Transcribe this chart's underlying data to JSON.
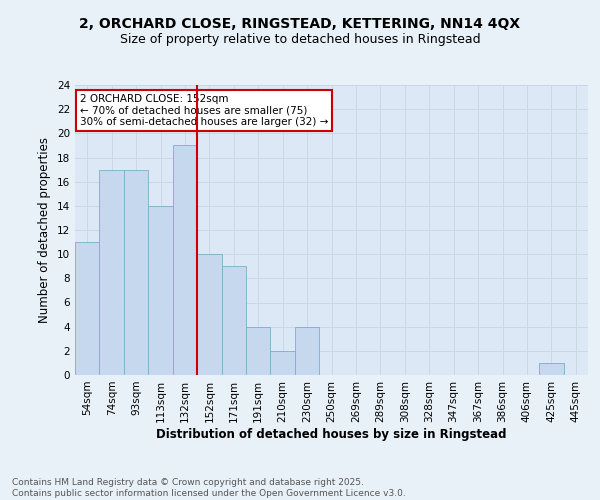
{
  "title_line1": "2, ORCHARD CLOSE, RINGSTEAD, KETTERING, NN14 4QX",
  "title_line2": "Size of property relative to detached houses in Ringstead",
  "xlabel": "Distribution of detached houses by size in Ringstead",
  "ylabel": "Number of detached properties",
  "categories": [
    "54sqm",
    "74sqm",
    "93sqm",
    "113sqm",
    "132sqm",
    "152sqm",
    "171sqm",
    "191sqm",
    "210sqm",
    "230sqm",
    "250sqm",
    "269sqm",
    "289sqm",
    "308sqm",
    "328sqm",
    "347sqm",
    "367sqm",
    "386sqm",
    "406sqm",
    "425sqm",
    "445sqm"
  ],
  "values": [
    11,
    17,
    17,
    14,
    19,
    10,
    9,
    4,
    2,
    4,
    0,
    0,
    0,
    0,
    0,
    0,
    0,
    0,
    0,
    1,
    0
  ],
  "bar_color": "#c5d8ee",
  "bar_edgecolor": "#7aaecc",
  "redline_index": 4,
  "ylim": [
    0,
    24
  ],
  "yticks": [
    0,
    2,
    4,
    6,
    8,
    10,
    12,
    14,
    16,
    18,
    20,
    22,
    24
  ],
  "annotation_text": "2 ORCHARD CLOSE: 152sqm\n← 70% of detached houses are smaller (75)\n30% of semi-detached houses are larger (32) →",
  "annotation_box_color": "#ffffff",
  "annotation_box_edgecolor": "#cc0000",
  "footer_line1": "Contains HM Land Registry data © Crown copyright and database right 2025.",
  "footer_line2": "Contains public sector information licensed under the Open Government Licence v3.0.",
  "background_color": "#e8f0f8",
  "plot_bg_color": "#dce8f5",
  "grid_color": "#c8d8e8",
  "title_fontsize": 10,
  "subtitle_fontsize": 9,
  "axis_label_fontsize": 8.5,
  "tick_fontsize": 7.5,
  "footer_fontsize": 6.5,
  "annotation_fontsize": 7.5
}
